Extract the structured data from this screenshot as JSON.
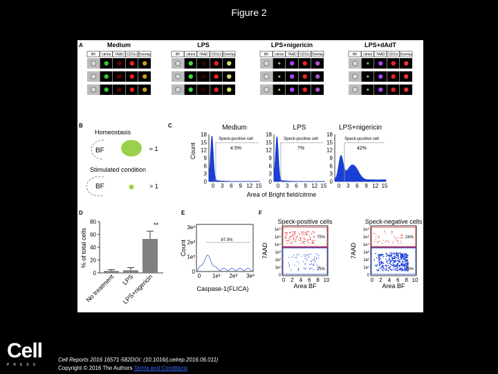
{
  "page": {
    "title": "Figure 2"
  },
  "panel_a": {
    "letter": "A",
    "groups": [
      "Medium",
      "LPS",
      "LPS+nigericin",
      "LPS+dAdT"
    ],
    "channels": [
      "BF",
      "citrine",
      "7AAD",
      "CD11c",
      "Overlay"
    ]
  },
  "panel_b": {
    "letter": "B",
    "homeostasis": "Homeostasis",
    "stimulated": "Stimulated condition",
    "bf": "BF",
    "eq": "≈ 1",
    "gt": "> 1"
  },
  "panel_c": {
    "letter": "C",
    "xlabel": "Area of Bright field/citrine",
    "ylabel": "Count",
    "yticks": [
      "18",
      "15",
      "12",
      "9",
      "6",
      "3",
      "0"
    ],
    "xticks": [
      "0",
      "3",
      "6",
      "9",
      "12",
      "15"
    ],
    "xticks_third": [
      "0",
      "3",
      "6",
      "9",
      "12",
      "15"
    ],
    "gate_label": "Speck-positive cell",
    "plots": [
      {
        "title": "Medium",
        "percent": "4.5%"
      },
      {
        "title": "LPS",
        "percent": "7%"
      },
      {
        "title": "LPS+nigericin",
        "percent": "42%"
      }
    ]
  },
  "panel_d": {
    "letter": "D",
    "ylabel": "% of total cells",
    "yticks": [
      "80",
      "60",
      "40",
      "20",
      "0"
    ],
    "significance": "**",
    "chart_data": {
      "type": "bar",
      "categories": [
        "No treatment",
        "LPS",
        "LPS+nigericin"
      ],
      "values": [
        3,
        4,
        53
      ],
      "errors": [
        2,
        4,
        12
      ],
      "ylabel": "% of total cells",
      "ylim": [
        0,
        80
      ]
    }
  },
  "panel_e": {
    "letter": "E",
    "ylabel": "Count",
    "xlabel": "Caspase-1(FLICA)",
    "percent": "87.5%",
    "yticks": [
      "3e³",
      "2e³",
      "1e³",
      "0"
    ],
    "xticks": [
      "0",
      "1e³",
      "2e³",
      "3e³"
    ]
  },
  "panel_f": {
    "letter": "F",
    "ylabel": "7AAD",
    "xlabel": "Area BF",
    "yticks": [
      "1e⁶",
      "1e⁵",
      "1e⁴",
      "1e³",
      "1e²",
      "1e¹",
      "0"
    ],
    "xticks": [
      "0",
      "2",
      "4",
      "6",
      "8",
      "10"
    ],
    "plots": [
      {
        "title": "Speck-positive cells",
        "upper": "75%",
        "lower": "25%",
        "color": "#e02020"
      },
      {
        "title": "Speck-negative cells",
        "upper": "24%",
        "lower": "76%",
        "color": "#1a3fd6"
      }
    ]
  },
  "footer": {
    "citation": "Cell Reports 2016 16571-582DOI: (10.1016/j.celrep.2016.06.011)",
    "copyright": "Copyright © 2016 The Authors",
    "link": "Terms and Conditions"
  },
  "logo": {
    "name": "Cell",
    "press": "PRESS"
  },
  "colors": {
    "histogram": "#1a3fd6",
    "gate": "#9aa0a6",
    "bar": "#808080"
  }
}
